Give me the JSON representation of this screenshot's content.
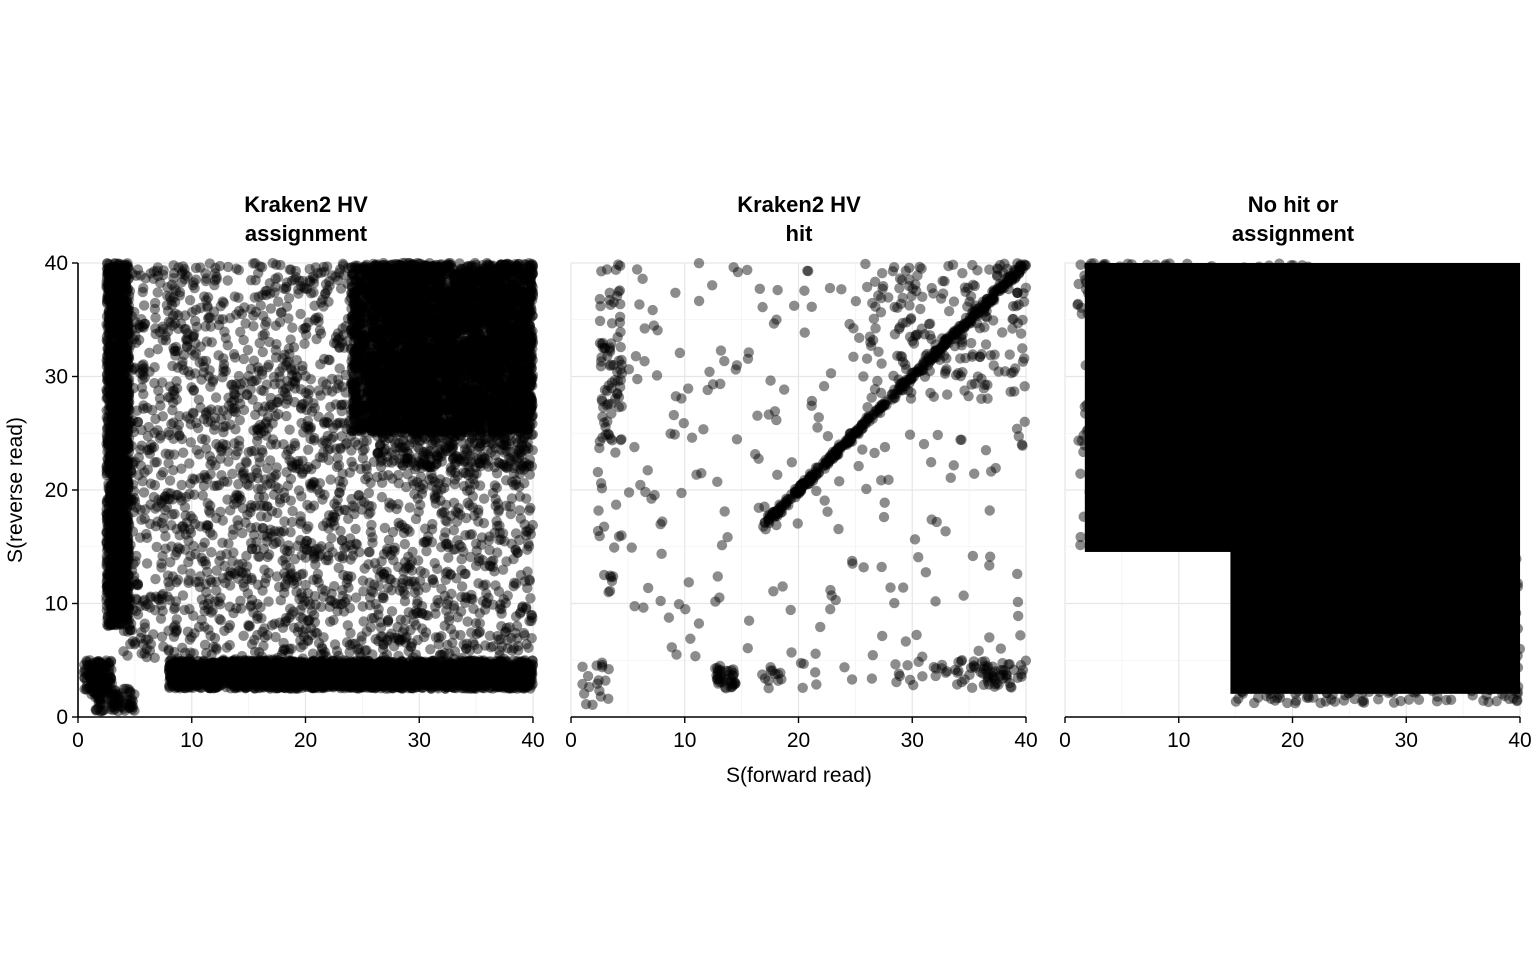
{
  "chart_data": {
    "type": "scatter",
    "xlabel": "S(forward read)",
    "ylabel": "S(reverse read)",
    "xlim": [
      0,
      40
    ],
    "ylim": [
      0,
      40
    ],
    "xticks": [
      "0",
      "10",
      "20",
      "30",
      "40"
    ],
    "yticks": [
      "0",
      "10",
      "20",
      "30",
      "40"
    ],
    "grid": true,
    "point_color": "#000000",
    "point_opacity": 0.45,
    "facets": [
      {
        "title_lines": [
          "Kraken2 HV",
          "assignment"
        ],
        "regions": [
          {
            "x": [
              2.5,
              4.5
            ],
            "y": [
              8,
              40
            ],
            "count": 1500
          },
          {
            "x": [
              8,
              40
            ],
            "y": [
              2.5,
              5
            ],
            "count": 2600
          },
          {
            "x": [
              0.5,
              3
            ],
            "y": [
              2,
              5
            ],
            "count": 150
          },
          {
            "x": [
              1.5,
              5
            ],
            "y": [
              0.5,
              2.5
            ],
            "count": 80
          },
          {
            "x": [
              24,
              40
            ],
            "y": [
              25,
              40
            ],
            "count": 3500
          },
          {
            "x": [
              26,
              40
            ],
            "y": [
              22,
              40
            ],
            "count": 1200
          },
          {
            "x": [
              4,
              40
            ],
            "y": [
              5,
              40
            ],
            "count": 2500
          }
        ]
      },
      {
        "title_lines": [
          "Kraken2 HV",
          "hit"
        ],
        "diagonal": {
          "from": [
            17,
            17
          ],
          "to": [
            40,
            40
          ],
          "count": 450
        },
        "regions": [
          {
            "x": [
              2.5,
              4.5
            ],
            "y": [
              24,
              40
            ],
            "count": 80
          },
          {
            "x": [
              2,
              4.5
            ],
            "y": [
              10,
              24
            ],
            "count": 20
          },
          {
            "x": [
              1,
              3.5
            ],
            "y": [
              0.8,
              5
            ],
            "count": 18
          },
          {
            "x": [
              12.5,
              14.5
            ],
            "y": [
              2.5,
              4.5
            ],
            "count": 40
          },
          {
            "x": [
              16.5,
              19
            ],
            "y": [
              2.5,
              4.5
            ],
            "count": 12
          },
          {
            "x": [
              34,
              40
            ],
            "y": [
              2.5,
              5
            ],
            "count": 60
          },
          {
            "x": [
              29,
              34
            ],
            "y": [
              2.5,
              5
            ],
            "count": 15
          },
          {
            "x": [
              20,
              29
            ],
            "y": [
              2.5,
              5
            ],
            "count": 12
          },
          {
            "x": [
              26,
              40
            ],
            "y": [
              28,
              40
            ],
            "count": 180
          },
          {
            "x": [
              5,
              40
            ],
            "y": [
              5,
              40
            ],
            "count": 230
          }
        ]
      },
      {
        "title_lines": [
          "No hit or",
          "assignment"
        ],
        "solid_regions": [
          {
            "x": [
              2.2,
              40
            ],
            "y": [
              15,
              40
            ]
          },
          {
            "x": [
              15,
              40
            ],
            "y": [
              2.5,
              40
            ]
          }
        ],
        "regions": [
          {
            "x": [
              1,
              2.5
            ],
            "y": [
              15,
              40
            ],
            "count": 30
          },
          {
            "x": [
              2.5,
              22
            ],
            "y": [
              39,
              40
            ],
            "count": 60
          },
          {
            "x": [
              15,
              40
            ],
            "y": [
              1.2,
              2.6
            ],
            "count": 90
          },
          {
            "x": [
              34,
              40
            ],
            "y": [
              2.5,
              14
            ],
            "count": 120
          },
          {
            "x": [
              1.5,
              2.5
            ],
            "y": [
              35,
              40
            ],
            "count": 8
          }
        ]
      }
    ]
  }
}
